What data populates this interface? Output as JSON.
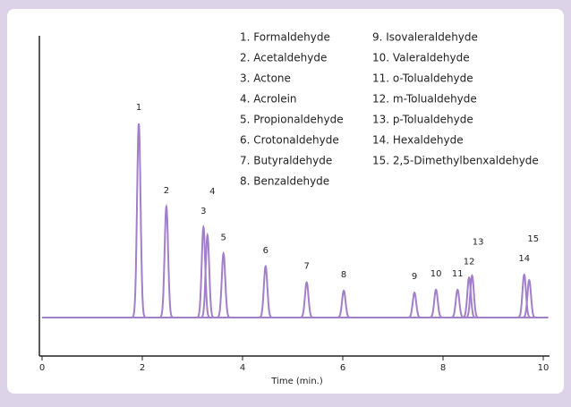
{
  "chart_data": {
    "type": "chromatogram",
    "x_label": "Time (min.)",
    "xlim": [
      0,
      10.1
    ],
    "xticks": [
      0,
      2,
      4,
      6,
      8,
      10
    ],
    "ylim": [
      0,
      100
    ],
    "baseline": 12,
    "color": "#a27fc9",
    "x": [
      1.93,
      2.48,
      3.22,
      3.3,
      3.62,
      4.46,
      5.28,
      6.02,
      7.43,
      7.86,
      8.29,
      8.52,
      8.58,
      9.62,
      9.72
    ],
    "values": [
      72.6,
      46.6,
      40.2,
      37.7,
      32,
      28,
      23,
      20.4,
      19.8,
      20.7,
      20.7,
      24.5,
      25.1,
      25.4,
      23.7
    ],
    "peak_labels": [
      "1",
      "2",
      "3",
      "4",
      "5",
      "6",
      "7",
      "8",
      "9",
      "10",
      "11",
      "12",
      "13",
      "14",
      "15"
    ],
    "legend": [
      "1. Formaldehyde",
      "2. Acetaldehyde",
      "3. Actone",
      "4. Acrolein",
      "5. Propionaldehyde",
      "6. Crotonaldehyde",
      "7. Butyraldehyde",
      "8. Benzaldehyde",
      "9. Isovaleraldehyde",
      "10. Valeraldehyde",
      "11. o-Tolualdehyde",
      "12. m-Tolualdehyde",
      "13. p-Tolualdehyde",
      "14. Hexaldehyde",
      "15. 2,5-Dimethylbenxaldehyde"
    ]
  }
}
